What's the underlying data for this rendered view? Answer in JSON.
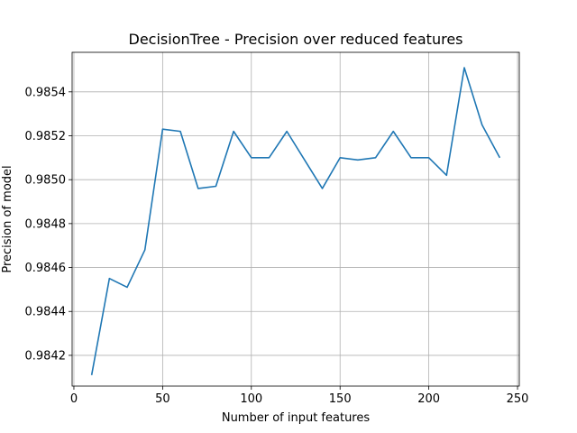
{
  "chart_data": {
    "type": "line",
    "title": "DecisionTree - Precision over reduced features",
    "xlabel": "Number of input features",
    "ylabel": "Precision of model",
    "xlim": [
      -1,
      251
    ],
    "ylim": [
      0.98406,
      0.98558
    ],
    "xticks": [
      0,
      50,
      100,
      150,
      200,
      250
    ],
    "xtick_labels": [
      "0",
      "50",
      "100",
      "150",
      "200",
      "250"
    ],
    "yticks": [
      0.9842,
      0.9844,
      0.9846,
      0.9848,
      0.985,
      0.9852,
      0.9854
    ],
    "ytick_labels": [
      "0.9842",
      "0.9844",
      "0.9846",
      "0.9848",
      "0.9850",
      "0.9852",
      "0.9854"
    ],
    "grid": true,
    "series": [
      {
        "color": "#1f77b4",
        "x": [
          10,
          20,
          30,
          40,
          50,
          60,
          70,
          80,
          90,
          100,
          110,
          120,
          130,
          140,
          150,
          160,
          170,
          180,
          190,
          200,
          210,
          220,
          230,
          240
        ],
        "y": [
          0.98411,
          0.98455,
          0.98451,
          0.98468,
          0.98523,
          0.98522,
          0.98496,
          0.98497,
          0.98522,
          0.9851,
          0.9851,
          0.98522,
          0.98509,
          0.98496,
          0.9851,
          0.98509,
          0.9851,
          0.98522,
          0.9851,
          0.9851,
          0.98502,
          0.98551,
          0.98525,
          0.9851
        ]
      }
    ]
  }
}
